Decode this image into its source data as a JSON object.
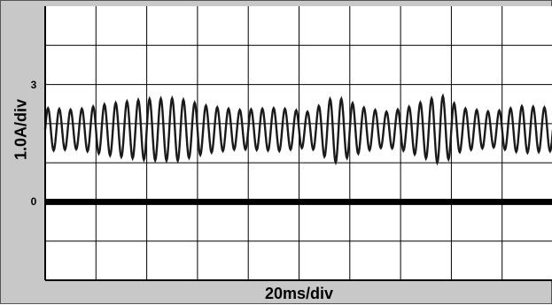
{
  "chart_data": {
    "type": "line",
    "xlabel": "20ms/div",
    "ylabel": "1.0A/div",
    "y_ticks": [
      {
        "value": 3,
        "label": "3"
      },
      {
        "value": 0,
        "label": "0"
      }
    ],
    "x_divisions": 10,
    "y_divisions": 7,
    "ylim": [
      -2.0,
      5.0
    ],
    "grid": true,
    "series": [
      {
        "role": "current waveform",
        "center": 1.85,
        "carrier_cycles": 45,
        "amplitude_profile": [
          [
            0,
            0.55
          ],
          [
            6,
            0.5
          ],
          [
            12,
            0.65
          ],
          [
            20,
            0.78
          ],
          [
            26,
            0.8
          ],
          [
            32,
            0.6
          ],
          [
            38,
            0.5
          ],
          [
            46,
            0.55
          ],
          [
            52,
            0.45
          ],
          [
            57,
            0.85
          ],
          [
            63,
            0.55
          ],
          [
            67,
            0.45
          ],
          [
            71,
            0.55
          ],
          [
            78,
            0.88
          ],
          [
            82,
            0.55
          ],
          [
            88,
            0.45
          ],
          [
            94,
            0.6
          ],
          [
            100,
            0.55
          ]
        ]
      },
      {
        "role": "zero reference",
        "value": 0
      }
    ],
    "colors": {
      "background": "#c8c8c8",
      "plot_area": "#ffffff",
      "trace": "#1a1a1a",
      "grid": "#000000"
    }
  }
}
